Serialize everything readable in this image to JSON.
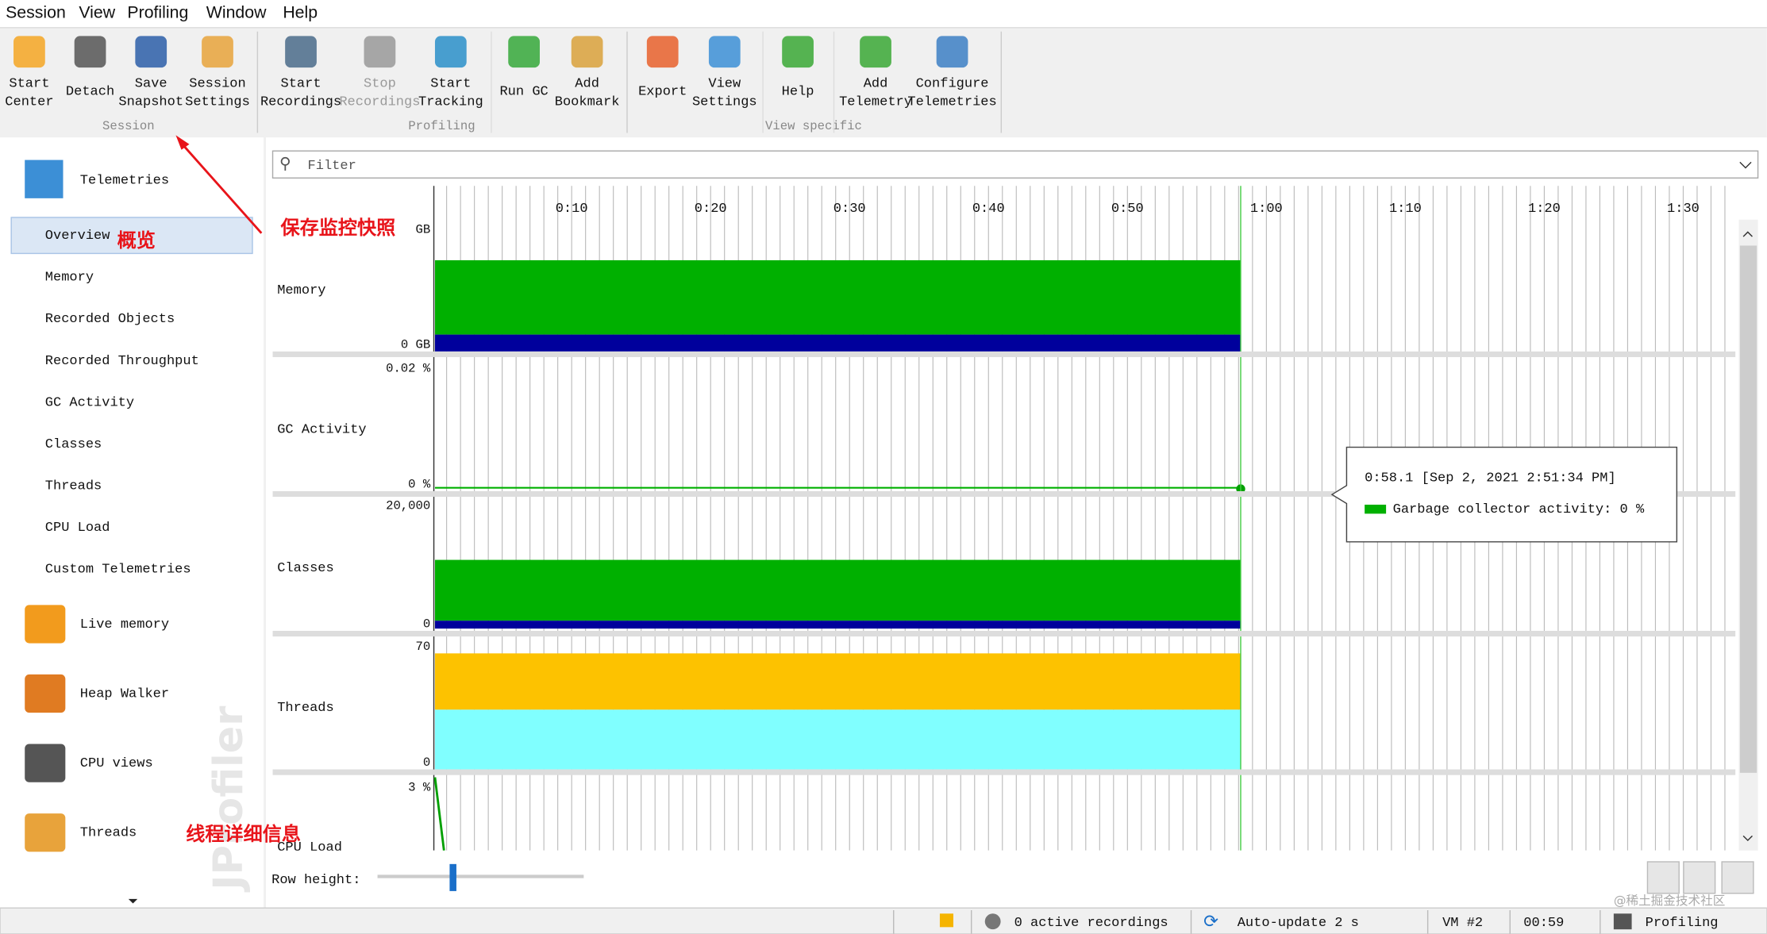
{
  "menu": [
    "Session",
    "View",
    "Profiling",
    "Window",
    "Help"
  ],
  "toolbar": {
    "groups": [
      {
        "label": "Session",
        "buttons": [
          [
            "Start",
            "Center"
          ],
          [
            "Detach"
          ],
          [
            "Save",
            "Snapshot"
          ],
          [
            "Session",
            "Settings"
          ]
        ]
      },
      {
        "label": "Profiling",
        "buttons": [
          [
            "Start",
            "Recordings"
          ],
          [
            "Stop",
            "Recordings"
          ],
          [
            "Start",
            "Tracking"
          ],
          [
            "Run GC"
          ],
          [
            "Add",
            "Bookmark"
          ]
        ]
      },
      {
        "label": "View specific",
        "buttons": [
          [
            "Export"
          ],
          [
            "View",
            "Settings"
          ],
          [
            "Help"
          ],
          [
            "Add",
            "Telemetry"
          ],
          [
            "Configure",
            "Telemetries"
          ]
        ]
      }
    ]
  },
  "sidebar": {
    "header": "Telemetries",
    "items": [
      "Overview",
      "Memory",
      "Recorded Objects",
      "Recorded Throughput",
      "GC Activity",
      "Classes",
      "Threads",
      "CPU Load",
      "Custom Telemetries"
    ],
    "sections": [
      "Live memory",
      "Heap Walker",
      "CPU views",
      "Threads"
    ]
  },
  "filter": "Filter",
  "timeline": {
    "ticks": [
      "0:10",
      "0:20",
      "0:30",
      "0:40",
      "0:50",
      "1:00",
      "1:10",
      "1:20",
      "1:30"
    ],
    "rows": [
      {
        "name": "Memory",
        "top": "GB",
        "bottom": "0 GB"
      },
      {
        "name": "GC Activity",
        "top": "0.02 %",
        "bottom": "0 %"
      },
      {
        "name": "Classes",
        "top": "20,000",
        "bottom": "0"
      },
      {
        "name": "Threads",
        "top": "70",
        "bottom": "0"
      },
      {
        "name": "CPU Load",
        "top": "3 %"
      }
    ]
  },
  "tooltip": {
    "time": "0:58.1 [Sep 2, 2021 2:51:34 PM]",
    "item": "Garbage collector activity:  0 %"
  },
  "row_height": "Row height:",
  "status": [
    "0 active recordings",
    "Auto-update 2 s",
    "VM #2",
    "00:59",
    "Profiling"
  ],
  "annotations": {
    "overview": "概览",
    "snapshot": "保存监控快照",
    "threads": "线程详细信息"
  },
  "watermark": "JProfiler",
  "credit": "@稀土掘金技术社区"
}
